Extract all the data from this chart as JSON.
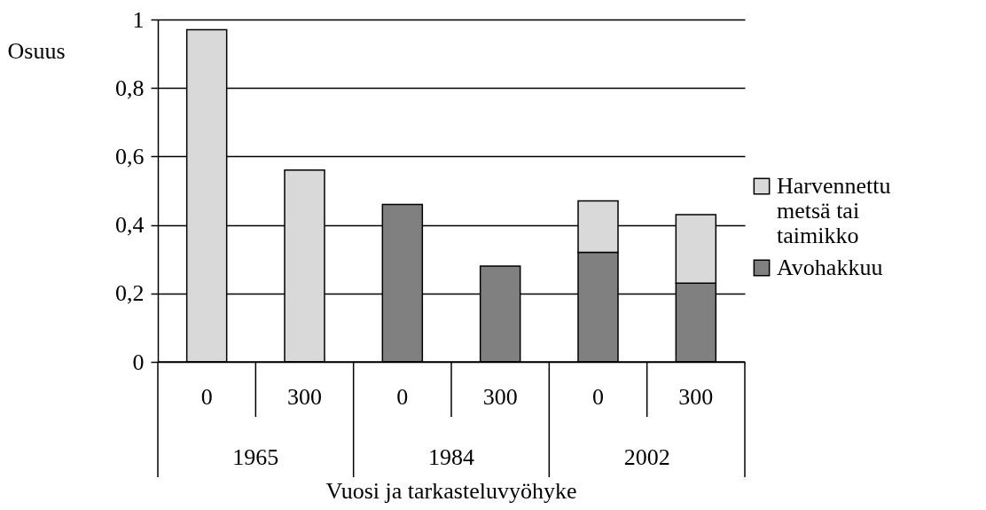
{
  "chart_data": {
    "type": "bar",
    "stacked": true,
    "xlabel": "Vuosi ja tarkasteluvyöhyke",
    "ylabel": "Osuus",
    "categories": [
      "0",
      "300",
      "0",
      "300",
      "0",
      "300"
    ],
    "series": [
      {
        "name": "Avohakkuu",
        "color": "#808080",
        "values": [
          null,
          null,
          0.46,
          0.28,
          0.32,
          0.23
        ]
      },
      {
        "name": "Harvennettu metsä tai taimikko",
        "color": "#d9d9d9",
        "values": [
          0.97,
          0.56,
          null,
          null,
          0.15,
          0.2
        ]
      }
    ],
    "annotations": [
      "1965",
      "1984",
      "2002"
    ],
    "ylim": [
      0,
      1
    ],
    "yticks": [
      0,
      {
        "value": 0.2,
        "label": "0,2"
      },
      {
        "value": 0.4,
        "label": "0,4"
      },
      {
        "value": 0.6,
        "label": "0,6"
      },
      {
        "value": 0.8,
        "label": "0,8"
      },
      1
    ],
    "grid": "y",
    "legend": "right"
  }
}
